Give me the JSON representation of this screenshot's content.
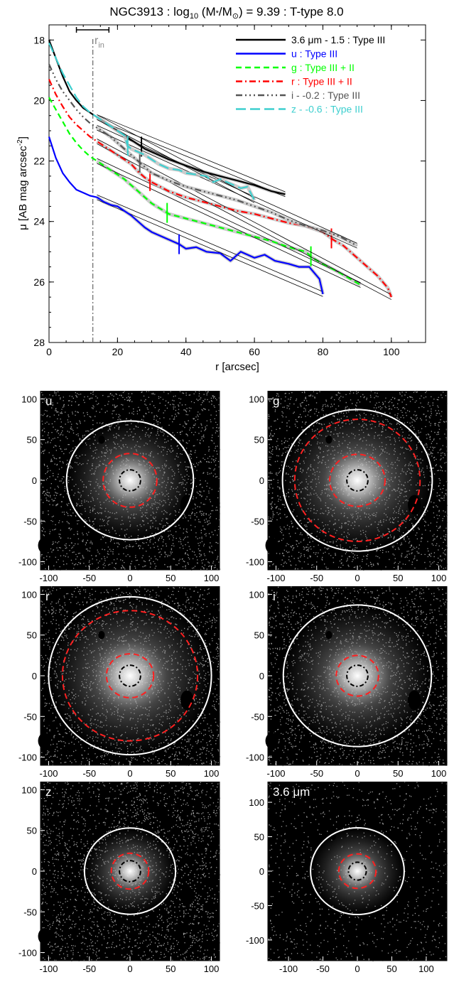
{
  "chart_data": [
    {
      "type": "line",
      "title": "NGC3913 : log",
      "title_sub": "10",
      "title_rest": " (M",
      "title_star": "*",
      "title_m": "/M",
      "title_sun": "⊙",
      "title_end": ") = 9.39 : T-type 8.0",
      "xlabel": "r [arcsec]",
      "ylabel": "μ [AB mag arcsec",
      "ylabel_sup": "-2",
      "ylabel_end": "]",
      "xlim": [
        0,
        110
      ],
      "ylim": [
        28,
        17.5
      ],
      "x_ticks": [
        "0",
        "20",
        "40",
        "60",
        "80",
        "100"
      ],
      "y_ticks": [
        "18",
        "20",
        "22",
        "24",
        "26",
        "28"
      ],
      "rin_label": "r",
      "rin_sub": "in",
      "rin_value": 12.8,
      "rin_bar": [
        8,
        17.5
      ],
      "legend_position": "top-right",
      "series": [
        {
          "name": "3.6 μm - 1.5 : Type III",
          "color": "#000000",
          "dash": "",
          "x": [
            0,
            2,
            4,
            6,
            8,
            10,
            12,
            14,
            16,
            18,
            20,
            22,
            24,
            26,
            28,
            30,
            35,
            40,
            45,
            50,
            55,
            60,
            65,
            69
          ],
          "y": [
            18.0,
            18.6,
            19.2,
            19.7,
            20.0,
            20.25,
            20.4,
            20.55,
            20.7,
            20.85,
            21.0,
            21.15,
            21.3,
            21.45,
            21.6,
            21.7,
            21.95,
            22.15,
            22.35,
            22.5,
            22.65,
            22.8,
            23.0,
            23.1
          ],
          "breaks": [
            27
          ]
        },
        {
          "name": "u : Type III",
          "color": "#0000ff",
          "dash": "",
          "x": [
            0,
            2,
            4,
            6,
            8,
            10,
            12,
            14,
            16,
            18,
            20,
            22,
            24,
            26,
            28,
            30,
            33,
            36,
            38,
            40,
            43,
            46,
            50,
            53,
            56,
            60,
            63,
            66,
            70,
            73,
            76,
            79,
            80
          ],
          "y": [
            21.2,
            21.9,
            22.4,
            22.7,
            22.95,
            23.05,
            23.15,
            23.2,
            23.35,
            23.45,
            23.5,
            23.65,
            23.8,
            24.0,
            24.2,
            24.35,
            24.5,
            24.65,
            24.75,
            24.9,
            24.85,
            25.0,
            25.05,
            25.3,
            25.0,
            25.2,
            25.1,
            25.3,
            25.4,
            25.5,
            25.5,
            25.9,
            26.4
          ],
          "breaks": [
            38
          ]
        },
        {
          "name": "g : Type III + II",
          "color": "#00ff00",
          "dash": "8 5",
          "x": [
            0,
            2,
            4,
            6,
            8,
            10,
            12,
            14,
            16,
            18,
            20,
            22,
            24,
            26,
            28,
            30,
            35,
            40,
            45,
            50,
            55,
            60,
            65,
            70,
            75,
            77,
            80,
            85,
            88,
            91
          ],
          "y": [
            19.9,
            20.3,
            20.7,
            21.1,
            21.4,
            21.65,
            21.85,
            22.0,
            22.15,
            22.3,
            22.45,
            22.6,
            22.8,
            23.0,
            23.2,
            23.4,
            23.75,
            23.9,
            24.05,
            24.2,
            24.35,
            24.5,
            24.65,
            24.85,
            25.0,
            25.2,
            25.4,
            25.7,
            25.9,
            26.1
          ],
          "breaks": [
            34.5,
            76.5
          ]
        },
        {
          "name": "r : Type III + II",
          "color": "#ff0000",
          "dash": "9 4 2 4",
          "x": [
            0,
            2,
            4,
            6,
            8,
            10,
            12,
            14,
            16,
            18,
            20,
            22,
            24,
            26,
            28,
            30,
            35,
            40,
            45,
            50,
            55,
            60,
            65,
            70,
            75,
            80,
            83,
            86,
            90,
            93,
            96,
            99,
            100
          ],
          "y": [
            19.3,
            19.8,
            20.2,
            20.55,
            20.8,
            21.0,
            21.2,
            21.35,
            21.5,
            21.65,
            21.8,
            21.95,
            22.1,
            22.35,
            22.55,
            22.7,
            23.0,
            23.2,
            23.35,
            23.5,
            23.65,
            23.75,
            23.9,
            24.05,
            24.15,
            24.35,
            24.6,
            24.8,
            25.2,
            25.5,
            25.8,
            26.2,
            26.5
          ],
          "breaks": [
            29.5,
            82.5
          ]
        },
        {
          "name": "i - -0.2 : Type III",
          "color": "#555555",
          "dash": "9 4 2 4 2 4 2 4",
          "x": [
            0,
            2,
            4,
            6,
            8,
            10,
            12,
            14,
            16,
            18,
            20,
            22,
            24,
            26,
            28,
            30,
            35,
            40,
            45,
            50,
            55,
            60,
            65,
            70,
            75,
            80,
            85,
            90
          ],
          "y": [
            18.8,
            19.3,
            19.7,
            20.0,
            20.3,
            20.55,
            20.75,
            20.9,
            21.05,
            21.2,
            21.4,
            21.6,
            21.8,
            22.0,
            22.2,
            22.4,
            22.65,
            22.85,
            23.0,
            23.15,
            23.3,
            23.5,
            23.7,
            23.95,
            24.15,
            24.3,
            24.5,
            24.8
          ],
          "breaks": [
            26.5
          ]
        },
        {
          "name": "z - -0.6 : Type III",
          "color": "#3ecfcf",
          "dash": "14 6",
          "x": [
            0,
            2,
            4,
            6,
            8,
            10,
            12,
            14,
            16,
            18,
            20,
            22,
            23,
            24,
            26,
            28,
            30,
            32,
            35,
            38,
            40,
            43,
            46,
            48,
            50,
            53,
            56,
            58,
            60
          ],
          "y": [
            18.1,
            18.6,
            19.1,
            19.5,
            19.9,
            20.2,
            20.4,
            20.55,
            20.7,
            20.85,
            21.0,
            21.15,
            21.5,
            21.6,
            21.7,
            21.8,
            21.95,
            22.1,
            22.25,
            22.3,
            22.4,
            22.45,
            22.5,
            22.7,
            22.6,
            22.75,
            22.9,
            22.85,
            23.3
          ],
          "breaks": [
            23
          ]
        }
      ]
    },
    {
      "type": "heatmap",
      "panels": [
        {
          "label": "u",
          "xlim": [
            -110,
            110
          ],
          "ylim": [
            -110,
            110
          ],
          "x_ticks": [
            "-100",
            "-50",
            "0",
            "50",
            "100"
          ],
          "y_ticks": [
            "100",
            "50",
            "0",
            "-50",
            "-100"
          ],
          "ellipses": [
            {
              "style": "black-dashdot",
              "rx": 13,
              "ry": 13
            },
            {
              "style": "red-dashed",
              "rx": 33,
              "ry": 33
            },
            {
              "style": "white-solid",
              "rx": 78,
              "ry": 73
            }
          ]
        },
        {
          "label": "g",
          "xlim": [
            -110,
            110
          ],
          "ylim": [
            -110,
            110
          ],
          "x_ticks": [
            "-100",
            "-50",
            "0",
            "50",
            "100"
          ],
          "y_ticks": [
            "100",
            "50",
            "0",
            "-50",
            "-100"
          ],
          "ellipses": [
            {
              "style": "black-dashdot",
              "rx": 13,
              "ry": 13
            },
            {
              "style": "red-dashed",
              "rx": 34,
              "ry": 32
            },
            {
              "style": "red-dashed",
              "rx": 77,
              "ry": 75
            },
            {
              "style": "white-solid",
              "rx": 92,
              "ry": 87
            }
          ]
        },
        {
          "label": "r",
          "xlim": [
            -110,
            110
          ],
          "ylim": [
            -110,
            110
          ],
          "x_ticks": [
            "-100",
            "-50",
            "0",
            "50",
            "100"
          ],
          "y_ticks": [
            "100",
            "50",
            "0",
            "-50",
            "-100"
          ],
          "ellipses": [
            {
              "style": "black-dashdot",
              "rx": 13,
              "ry": 13
            },
            {
              "style": "red-dashed",
              "rx": 29,
              "ry": 27
            },
            {
              "style": "red-dashed",
              "rx": 83,
              "ry": 80
            },
            {
              "style": "white-solid",
              "rx": 100,
              "ry": 97
            }
          ]
        },
        {
          "label": "i",
          "xlim": [
            -110,
            110
          ],
          "ylim": [
            -110,
            110
          ],
          "x_ticks": [
            "-100",
            "-50",
            "0",
            "50",
            "100"
          ],
          "y_ticks": [
            "100",
            "50",
            "0",
            "-50",
            "-100"
          ],
          "ellipses": [
            {
              "style": "black-dashdot",
              "rx": 13,
              "ry": 13
            },
            {
              "style": "red-dashed",
              "rx": 26,
              "ry": 25
            },
            {
              "style": "white-solid",
              "rx": 91,
              "ry": 87
            }
          ]
        },
        {
          "label": "z",
          "xlim": [
            -110,
            110
          ],
          "ylim": [
            -110,
            110
          ],
          "x_ticks": [
            "-100",
            "-50",
            "0",
            "50",
            "100"
          ],
          "y_ticks": [
            "100",
            "50",
            "0",
            "-50",
            "-100"
          ],
          "ellipses": [
            {
              "style": "black-dashdot",
              "rx": 13,
              "ry": 13
            },
            {
              "style": "red-dashed",
              "rx": 23,
              "ry": 22
            },
            {
              "style": "white-solid",
              "rx": 56,
              "ry": 53
            }
          ]
        },
        {
          "label": "3.6 μm",
          "xlim": [
            -130,
            130
          ],
          "ylim": [
            -130,
            130
          ],
          "x_ticks": [
            "-100",
            "-50",
            "0",
            "50",
            "100"
          ],
          "y_ticks": [
            "100",
            "50",
            "0",
            "-50",
            "-100"
          ],
          "ellipses": [
            {
              "style": "black-dashdot",
              "rx": 13,
              "ry": 13
            },
            {
              "style": "red-dashed",
              "rx": 27,
              "ry": 25
            },
            {
              "style": "white-solid",
              "rx": 68,
              "ry": 63
            }
          ]
        }
      ]
    }
  ]
}
